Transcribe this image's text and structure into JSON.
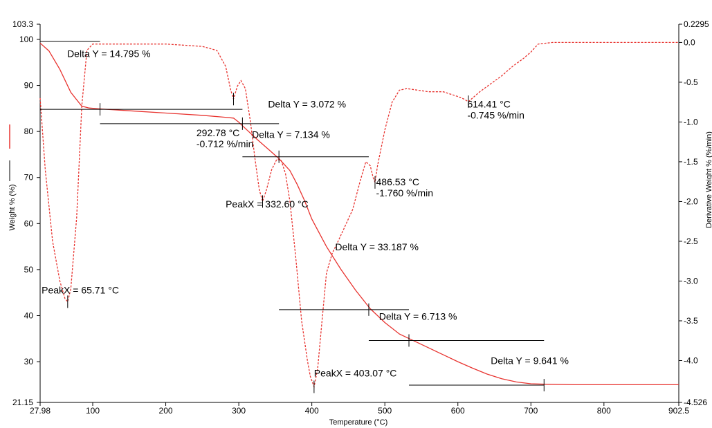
{
  "chart_data": {
    "type": "line",
    "title": "",
    "xlabel": "Temperature (°C)",
    "ylabel_left": "Weight % (%)",
    "ylabel_right": "Derivative Weight % (%/min)",
    "x_ticks": [
      "27.98",
      "100",
      "200",
      "300",
      "400",
      "500",
      "600",
      "700",
      "800",
      "902.5"
    ],
    "y_left_ticks": [
      "21.15",
      "30",
      "40",
      "50",
      "60",
      "70",
      "80",
      "90",
      "100",
      "103.3"
    ],
    "y_right_ticks": [
      "-4.526",
      "-4.0",
      "-3.5",
      "-3.0",
      "-2.5",
      "-2.0",
      "-1.5",
      "-1.0",
      "-0.5",
      "0.0",
      "0.2295"
    ],
    "xlim": [
      27.98,
      902.5
    ],
    "ylim_left": [
      21.15,
      103.3
    ],
    "ylim_right": [
      -4.526,
      0.2295
    ],
    "grid": false,
    "colors": {
      "series": "#e8332f",
      "annotation": "#000000"
    },
    "series": [
      {
        "name": "Weight %",
        "axis": "left",
        "style": "solid",
        "x": [
          27.98,
          40,
          55,
          70,
          85,
          95,
          110,
          150,
          200,
          250,
          280,
          292.78,
          300,
          310,
          325,
          340,
          355,
          370,
          380,
          390,
          400,
          420,
          440,
          460,
          480,
          500,
          520,
          540,
          560,
          580,
          600,
          620,
          640,
          660,
          680,
          700,
          720,
          760,
          800,
          850,
          902.5
        ],
        "y": [
          99.2,
          97.5,
          93.5,
          88.5,
          85.5,
          85.1,
          84.9,
          84.5,
          84.0,
          83.5,
          83.1,
          82.9,
          82.0,
          80.5,
          78.3,
          76.2,
          74.1,
          71.5,
          68.5,
          65.0,
          61.0,
          55.0,
          50.0,
          45.5,
          41.5,
          38.5,
          36.0,
          34.5,
          33.0,
          31.5,
          30.0,
          28.6,
          27.3,
          26.3,
          25.6,
          25.2,
          25.1,
          25.0,
          25.0,
          25.0,
          25.0
        ]
      },
      {
        "name": "Derivative Weight %",
        "axis": "right",
        "style": "dashed",
        "x": [
          27.98,
          35,
          45,
          55,
          62,
          65.71,
          70,
          78,
          85,
          92,
          100,
          110,
          150,
          200,
          250,
          270,
          282,
          289,
          292.78,
          298,
          303,
          309,
          316,
          322,
          328,
          332.6,
          338,
          345,
          352,
          358,
          364,
          370,
          378,
          386,
          394,
          398,
          403.07,
          408,
          414,
          420,
          428,
          436,
          446,
          456,
          466,
          474,
          480,
          484,
          486.53,
          490,
          500,
          510,
          520,
          530,
          545,
          560,
          580,
          600,
          608,
          614.41,
          620,
          630,
          645,
          660,
          675,
          690,
          700,
          710,
          730,
          760,
          800,
          850,
          902.5
        ],
        "y": [
          -0.7,
          -1.6,
          -2.5,
          -3.0,
          -3.22,
          -3.26,
          -3.1,
          -2.2,
          -0.8,
          -0.1,
          -0.02,
          -0.02,
          -0.02,
          -0.02,
          -0.05,
          -0.1,
          -0.3,
          -0.6,
          -0.712,
          -0.55,
          -0.48,
          -0.58,
          -1.0,
          -1.45,
          -1.85,
          -2.0,
          -1.85,
          -1.6,
          -1.47,
          -1.48,
          -1.65,
          -2.0,
          -2.7,
          -3.5,
          -4.0,
          -4.2,
          -4.33,
          -4.1,
          -3.5,
          -2.9,
          -2.65,
          -2.5,
          -2.3,
          -2.1,
          -1.75,
          -1.5,
          -1.55,
          -1.7,
          -1.76,
          -1.55,
          -1.1,
          -0.75,
          -0.6,
          -0.58,
          -0.6,
          -0.62,
          -0.62,
          -0.68,
          -0.71,
          -0.745,
          -0.7,
          -0.62,
          -0.52,
          -0.42,
          -0.3,
          -0.2,
          -0.12,
          -0.02,
          0.0,
          0.0,
          0.0,
          0.0,
          0.0
        ]
      }
    ],
    "annotations": {
      "delta_y": [
        {
          "label": "Delta Y = 14.795 %",
          "line_x": [
            27.98,
            110
          ],
          "y_top": 99.6,
          "y_bottom": 84.8,
          "label_x": 65,
          "label_y": 96.2
        },
        {
          "label": "Delta Y = 3.072 %",
          "line_x": [
            110,
            305
          ],
          "y_top": 84.8,
          "y_bottom": 81.7,
          "label_x": 340,
          "label_y": 85.2
        },
        {
          "label": "Delta Y = 7.134 %",
          "line_x": [
            305,
            355
          ],
          "y_top": 81.7,
          "y_bottom": 74.5,
          "label_x": 318,
          "label_y": 78.6
        },
        {
          "label": "Delta Y = 33.187 %",
          "line_x": [
            355,
            478
          ],
          "y_top": 74.5,
          "y_bottom": 41.3,
          "label_x": 432,
          "label_y": 54.2
        },
        {
          "label": "Delta Y = 6.713 %",
          "line_x": [
            478,
            533
          ],
          "y_top": 41.3,
          "y_bottom": 34.6,
          "label_x": 492,
          "label_y": 39.1
        },
        {
          "label": "Delta Y = 9.641 %",
          "line_x": [
            533,
            718
          ],
          "y_top": 34.6,
          "y_bottom": 24.9,
          "label_x": 645,
          "label_y": 29.5
        }
      ],
      "peaks": [
        {
          "label": "PeakX = 65.71 °C",
          "x": 65.71,
          "y_right": -3.26,
          "label_x": 30,
          "label_y": 44.8
        },
        {
          "label": "PeakX = 332.60 °C",
          "x": 332.6,
          "y_right": -2.0,
          "label_x": 282,
          "label_y": 63.5
        },
        {
          "label": "PeakX = 403.07 °C",
          "x": 403.07,
          "y_right": -4.33,
          "label_x": 403,
          "label_y": 26.8
        }
      ],
      "points": [
        {
          "line1": "292.78 °C",
          "line2": "-0.712 %/min",
          "x": 292.78,
          "y_right": -0.712,
          "label_x": 242,
          "label_y": 79.0
        },
        {
          "line1": "486.53 °C",
          "line2": "-1.760 %/min",
          "x": 486.53,
          "y_right": -1.76,
          "label_x": 488,
          "label_y": 68.3
        },
        {
          "line1": "614.41 °C",
          "line2": "-0.745 %/min",
          "x": 614.41,
          "y_right": -0.745,
          "label_x": 613,
          "label_y": 85.2
        }
      ]
    }
  }
}
